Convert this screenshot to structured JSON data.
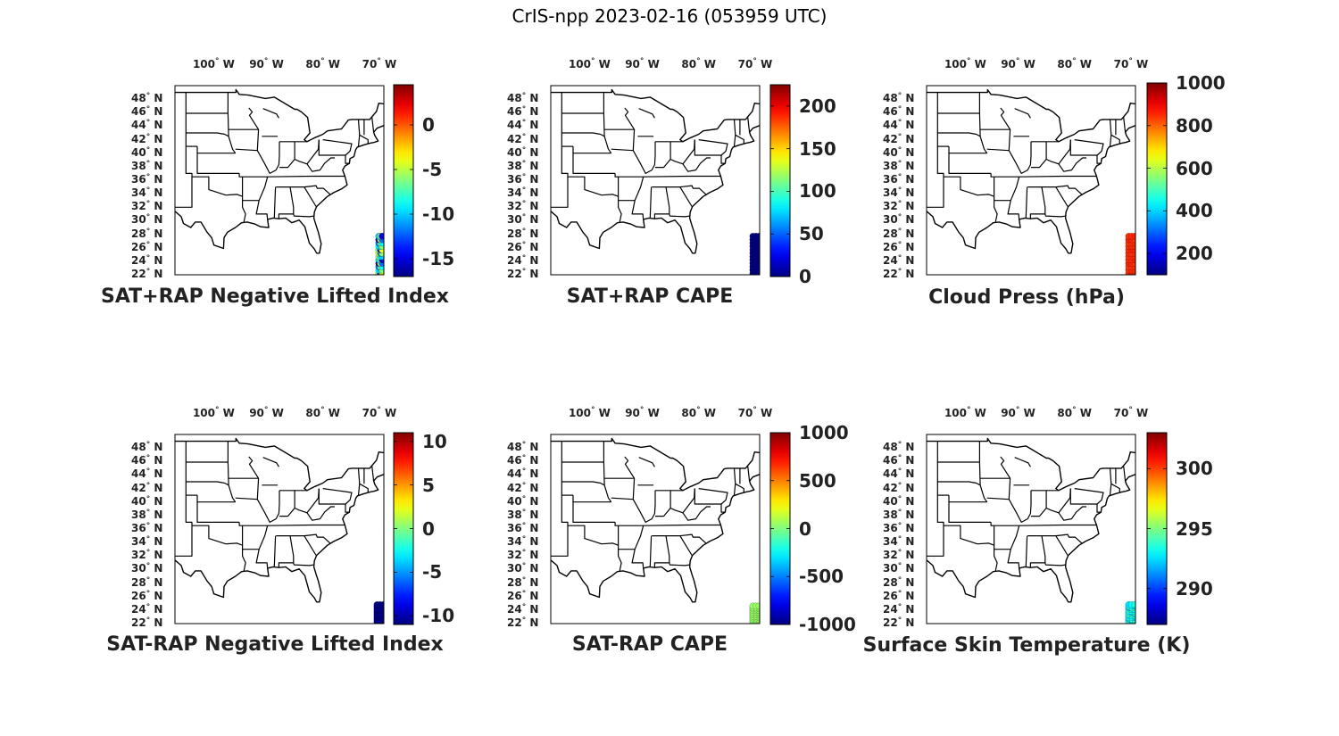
{
  "figure": {
    "title": "CrIS-npp 2023-02-16 (053959 UTC)"
  },
  "axes_labels": {
    "lon": [
      {
        "num": "100",
        "hem": "W"
      },
      {
        "num": "90",
        "hem": "W"
      },
      {
        "num": "80",
        "hem": "W"
      },
      {
        "num": "70",
        "hem": "W"
      }
    ],
    "lat": [
      {
        "num": "48",
        "hem": "N"
      },
      {
        "num": "46",
        "hem": "N"
      },
      {
        "num": "44",
        "hem": "N"
      },
      {
        "num": "42",
        "hem": "N"
      },
      {
        "num": "40",
        "hem": "N"
      },
      {
        "num": "38",
        "hem": "N"
      },
      {
        "num": "36",
        "hem": "N"
      },
      {
        "num": "34",
        "hem": "N"
      },
      {
        "num": "32",
        "hem": "N"
      },
      {
        "num": "30",
        "hem": "N"
      },
      {
        "num": "28",
        "hem": "N"
      },
      {
        "num": "26",
        "hem": "N"
      },
      {
        "num": "24",
        "hem": "N"
      },
      {
        "num": "22",
        "hem": "N"
      }
    ]
  },
  "map_extent": {
    "lon": [
      -106,
      -69
    ],
    "lat": [
      22,
      50
    ]
  },
  "colormap": "jet",
  "panels": [
    {
      "title": "SAT+RAP Negative Lifted Index",
      "colorbar": {
        "min": -17,
        "max": 4.5,
        "ticks": [
          "0",
          "-5",
          "-10",
          "-15"
        ],
        "tick_values": [
          0,
          -5,
          -10,
          -15
        ]
      },
      "swath": {
        "lon": [
          -69.9,
          -69.3
        ],
        "lat": [
          22.2,
          27.7
        ]
      },
      "swath_color_values": [
        -6,
        -9,
        -12,
        -15,
        -10,
        -6,
        -4
      ]
    },
    {
      "title": "SAT+RAP CAPE",
      "colorbar": {
        "min": 0,
        "max": 225,
        "ticks": [
          "200",
          "150",
          "100",
          "50",
          "0"
        ],
        "tick_values": [
          200,
          150,
          100,
          50,
          0
        ]
      },
      "swath": {
        "lon": [
          -70.2,
          -69.1
        ],
        "lat": [
          22.2,
          27.7
        ]
      },
      "swath_color_values": [
        0,
        0,
        0,
        0,
        0,
        0,
        0
      ]
    },
    {
      "title": "Cloud Press (hPa)",
      "colorbar": {
        "min": 100,
        "max": 1000,
        "ticks": [
          "1000",
          "800",
          "600",
          "400",
          "200"
        ],
        "tick_values": [
          1000,
          800,
          600,
          400,
          200
        ]
      },
      "swath": {
        "lon": [
          -70.2,
          -69.1
        ],
        "lat": [
          22.2,
          27.7
        ]
      },
      "swath_color_values": [
        850,
        850,
        840,
        860,
        850,
        845,
        855
      ]
    },
    {
      "title": "SAT-RAP Negative Lifted Index",
      "colorbar": {
        "min": -11,
        "max": 11,
        "ticks": [
          "10",
          "5",
          "0",
          "-5",
          "-10"
        ],
        "tick_values": [
          10,
          5,
          0,
          -5,
          -10
        ]
      },
      "swath": {
        "lon": [
          -70.2,
          -69.1
        ],
        "lat": [
          22.2,
          24.8
        ]
      },
      "swath_color_values": [
        -11,
        -11,
        -10,
        -11,
        -11,
        -10,
        -11
      ]
    },
    {
      "title": "SAT-RAP CAPE",
      "colorbar": {
        "min": -1000,
        "max": 1000,
        "ticks": [
          "1000",
          "500",
          "0",
          "-500",
          "-1000"
        ],
        "tick_values": [
          1000,
          500,
          0,
          -500,
          -1000
        ]
      },
      "swath": {
        "lon": [
          -70.2,
          -69.1
        ],
        "lat": [
          22.2,
          24.6
        ]
      },
      "swath_color_values": [
        50,
        80,
        20,
        60,
        40,
        30,
        70
      ]
    },
    {
      "title": "Surface Skin Temperature (K)",
      "colorbar": {
        "min": 287,
        "max": 303,
        "ticks": [
          "300",
          "295",
          "290"
        ],
        "tick_values": [
          300,
          295,
          290
        ]
      },
      "swath": {
        "lon": [
          -70.2,
          -69.1
        ],
        "lat": [
          22.2,
          24.8
        ]
      },
      "swath_color_values": [
        293,
        294,
        292,
        293.5,
        292.5,
        294,
        293
      ]
    }
  ]
}
